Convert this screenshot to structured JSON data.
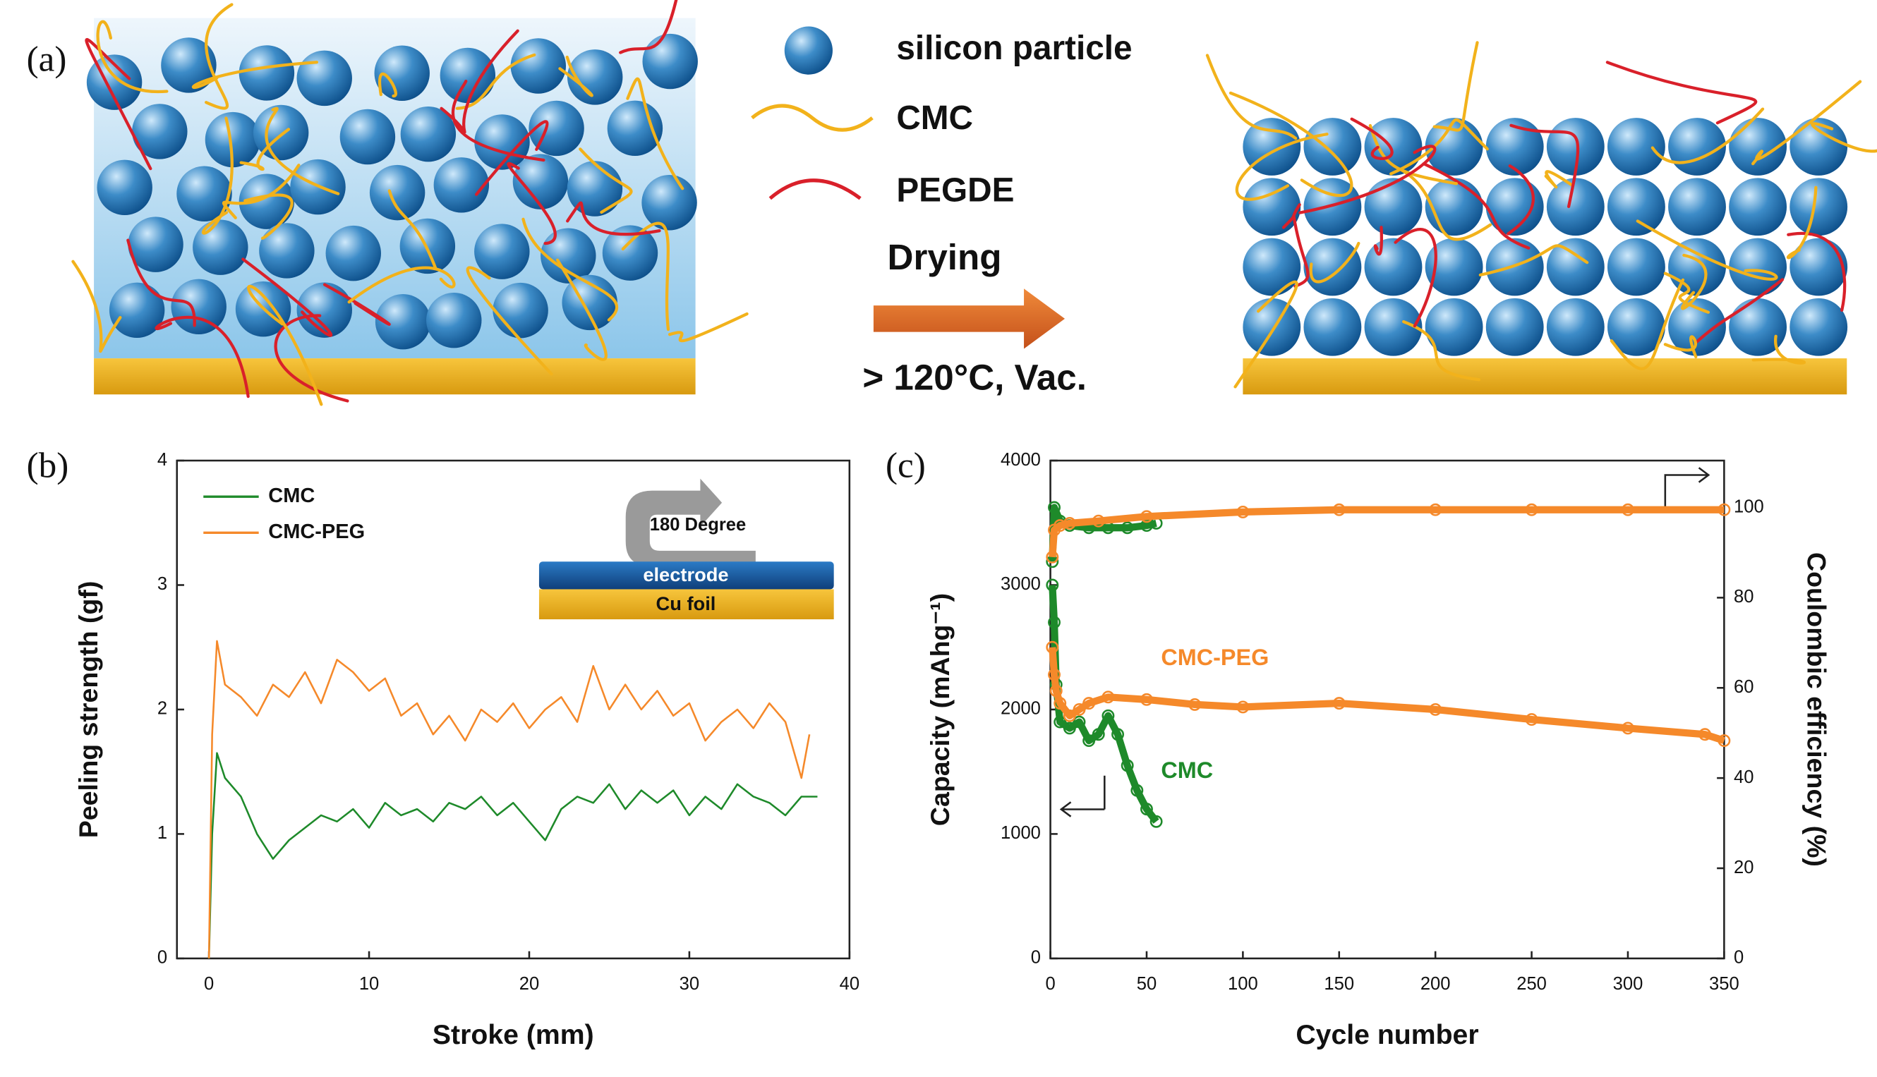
{
  "diagram": {
    "panel_label": "(a)",
    "legend": [
      "silicon particle",
      "CMC",
      "PEGDE"
    ],
    "step": "Drying",
    "condition": "> 120°C, Vac."
  },
  "chart_data": [
    {
      "type": "line",
      "panel_label": "(b)",
      "xlabel": "Stroke (mm)",
      "ylabel": "Peeling strength (gf)",
      "xlim": [
        -2,
        40
      ],
      "ylim": [
        0,
        4
      ],
      "xticks": [
        0,
        10,
        20,
        30,
        40
      ],
      "yticks": [
        0,
        1,
        2,
        3,
        4
      ],
      "legend": "upper left",
      "annotations": [
        "180 Degree",
        "electrode",
        "Cu foil"
      ],
      "series": [
        {
          "name": "CMC",
          "color": "#1e8a2a",
          "x": [
            0,
            0.2,
            0.5,
            1,
            2,
            3,
            4,
            5,
            6,
            7,
            8,
            9,
            10,
            11,
            12,
            13,
            14,
            15,
            16,
            17,
            18,
            19,
            20,
            21,
            22,
            23,
            24,
            25,
            26,
            27,
            28,
            29,
            30,
            31,
            32,
            33,
            34,
            35,
            36,
            37,
            38
          ],
          "values": [
            0,
            1.0,
            1.65,
            1.45,
            1.3,
            1.0,
            0.8,
            0.95,
            1.05,
            1.15,
            1.1,
            1.2,
            1.05,
            1.25,
            1.15,
            1.2,
            1.1,
            1.25,
            1.2,
            1.3,
            1.15,
            1.25,
            1.1,
            0.95,
            1.2,
            1.3,
            1.25,
            1.4,
            1.2,
            1.35,
            1.25,
            1.35,
            1.15,
            1.3,
            1.2,
            1.4,
            1.3,
            1.25,
            1.15,
            1.3,
            1.3
          ]
        },
        {
          "name": "CMC-PEG",
          "color": "#f5892a",
          "x": [
            0,
            0.2,
            0.5,
            1,
            2,
            3,
            4,
            5,
            6,
            7,
            8,
            9,
            10,
            11,
            12,
            13,
            14,
            15,
            16,
            17,
            18,
            19,
            20,
            21,
            22,
            23,
            24,
            25,
            26,
            27,
            28,
            29,
            30,
            31,
            32,
            33,
            34,
            35,
            36,
            37,
            37.5
          ],
          "values": [
            0,
            1.8,
            2.55,
            2.2,
            2.1,
            1.95,
            2.2,
            2.1,
            2.3,
            2.05,
            2.4,
            2.3,
            2.15,
            2.25,
            1.95,
            2.05,
            1.8,
            1.95,
            1.75,
            2.0,
            1.9,
            2.05,
            1.85,
            2.0,
            2.1,
            1.9,
            2.35,
            2.0,
            2.2,
            2.0,
            2.15,
            1.95,
            2.05,
            1.75,
            1.9,
            2.0,
            1.85,
            2.05,
            1.9,
            1.45,
            1.8
          ]
        }
      ]
    },
    {
      "type": "line",
      "panel_label": "(c)",
      "xlabel": "Cycle number",
      "ylabel": "Capacity (mAhg⁻¹)",
      "y2_label": "Coulombic efficiency (%)",
      "xlim": [
        0,
        350
      ],
      "ylim": [
        0,
        4000
      ],
      "y2lim": [
        0,
        110.4
      ],
      "xticks": [
        0,
        50,
        100,
        150,
        200,
        250,
        300,
        350
      ],
      "yticks": [
        0,
        1000,
        2000,
        3000,
        4000
      ],
      "y2ticks": [
        0,
        20,
        40,
        60,
        80,
        100
      ],
      "series": [
        {
          "name": "CMC",
          "color": "#1e8a2a",
          "x": [
            1,
            2,
            3,
            5,
            10,
            15,
            20,
            25,
            30,
            35,
            40,
            45,
            50,
            55
          ],
          "values": [
            3000,
            2700,
            2200,
            1900,
            1850,
            1900,
            1750,
            1800,
            1950,
            1800,
            1550,
            1350,
            1200,
            1100
          ]
        },
        {
          "name": "CMC-PEG",
          "color": "#f5892a",
          "x": [
            1,
            2,
            3,
            5,
            10,
            15,
            20,
            30,
            50,
            75,
            100,
            150,
            200,
            250,
            300,
            340,
            350
          ],
          "values": [
            2500,
            2280,
            2150,
            2050,
            1950,
            2000,
            2050,
            2100,
            2080,
            2040,
            2020,
            2050,
            2000,
            1920,
            1850,
            1800,
            1750
          ]
        },
        {
          "color": "#1e8a2a",
          "axis": "y2",
          "x": [
            1,
            2,
            5,
            10,
            20,
            30,
            40,
            50,
            55
          ],
          "values": [
            88,
            100,
            97,
            96,
            95.5,
            95.5,
            95.5,
            96,
            96.5
          ]
        },
        {
          "color": "#f5892a",
          "axis": "y2",
          "x": [
            1,
            2,
            5,
            10,
            25,
            50,
            100,
            150,
            200,
            250,
            300,
            350
          ],
          "values": [
            89,
            95,
            96,
            96.5,
            97,
            98,
            99,
            99.5,
            99.5,
            99.5,
            99.5,
            99.5
          ]
        }
      ]
    }
  ]
}
